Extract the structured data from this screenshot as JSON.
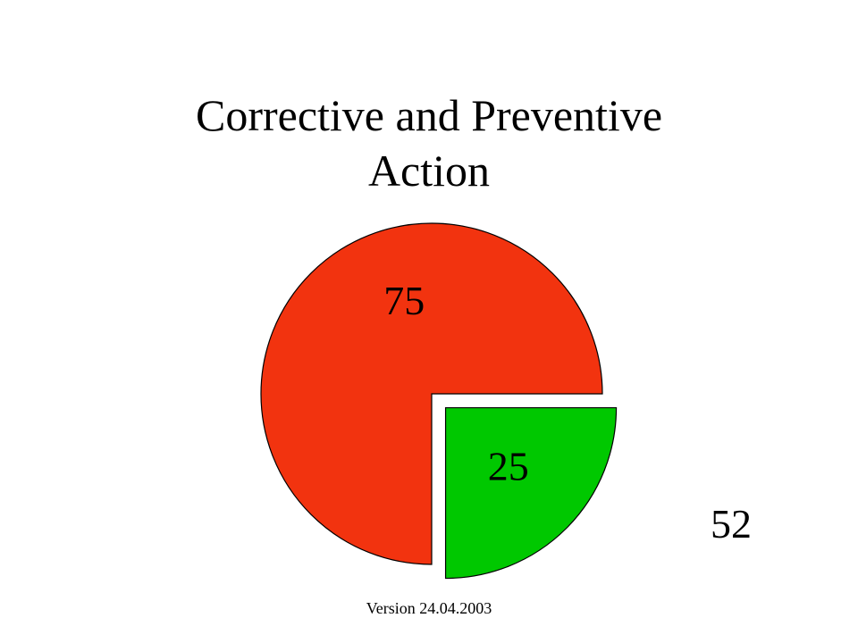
{
  "title_lines": [
    "Corrective and Preventive",
    "Action"
  ],
  "chart_data": {
    "type": "pie",
    "title": "Corrective and Preventive Action",
    "slices": [
      {
        "value": 75,
        "label": "75",
        "color": "#f2330f",
        "exploded": false
      },
      {
        "value": 25,
        "label": "25",
        "color": "#00c800",
        "exploded": true
      }
    ],
    "legend": "none"
  },
  "slide_number": "52",
  "footer_text": "Version 24.04.2003"
}
